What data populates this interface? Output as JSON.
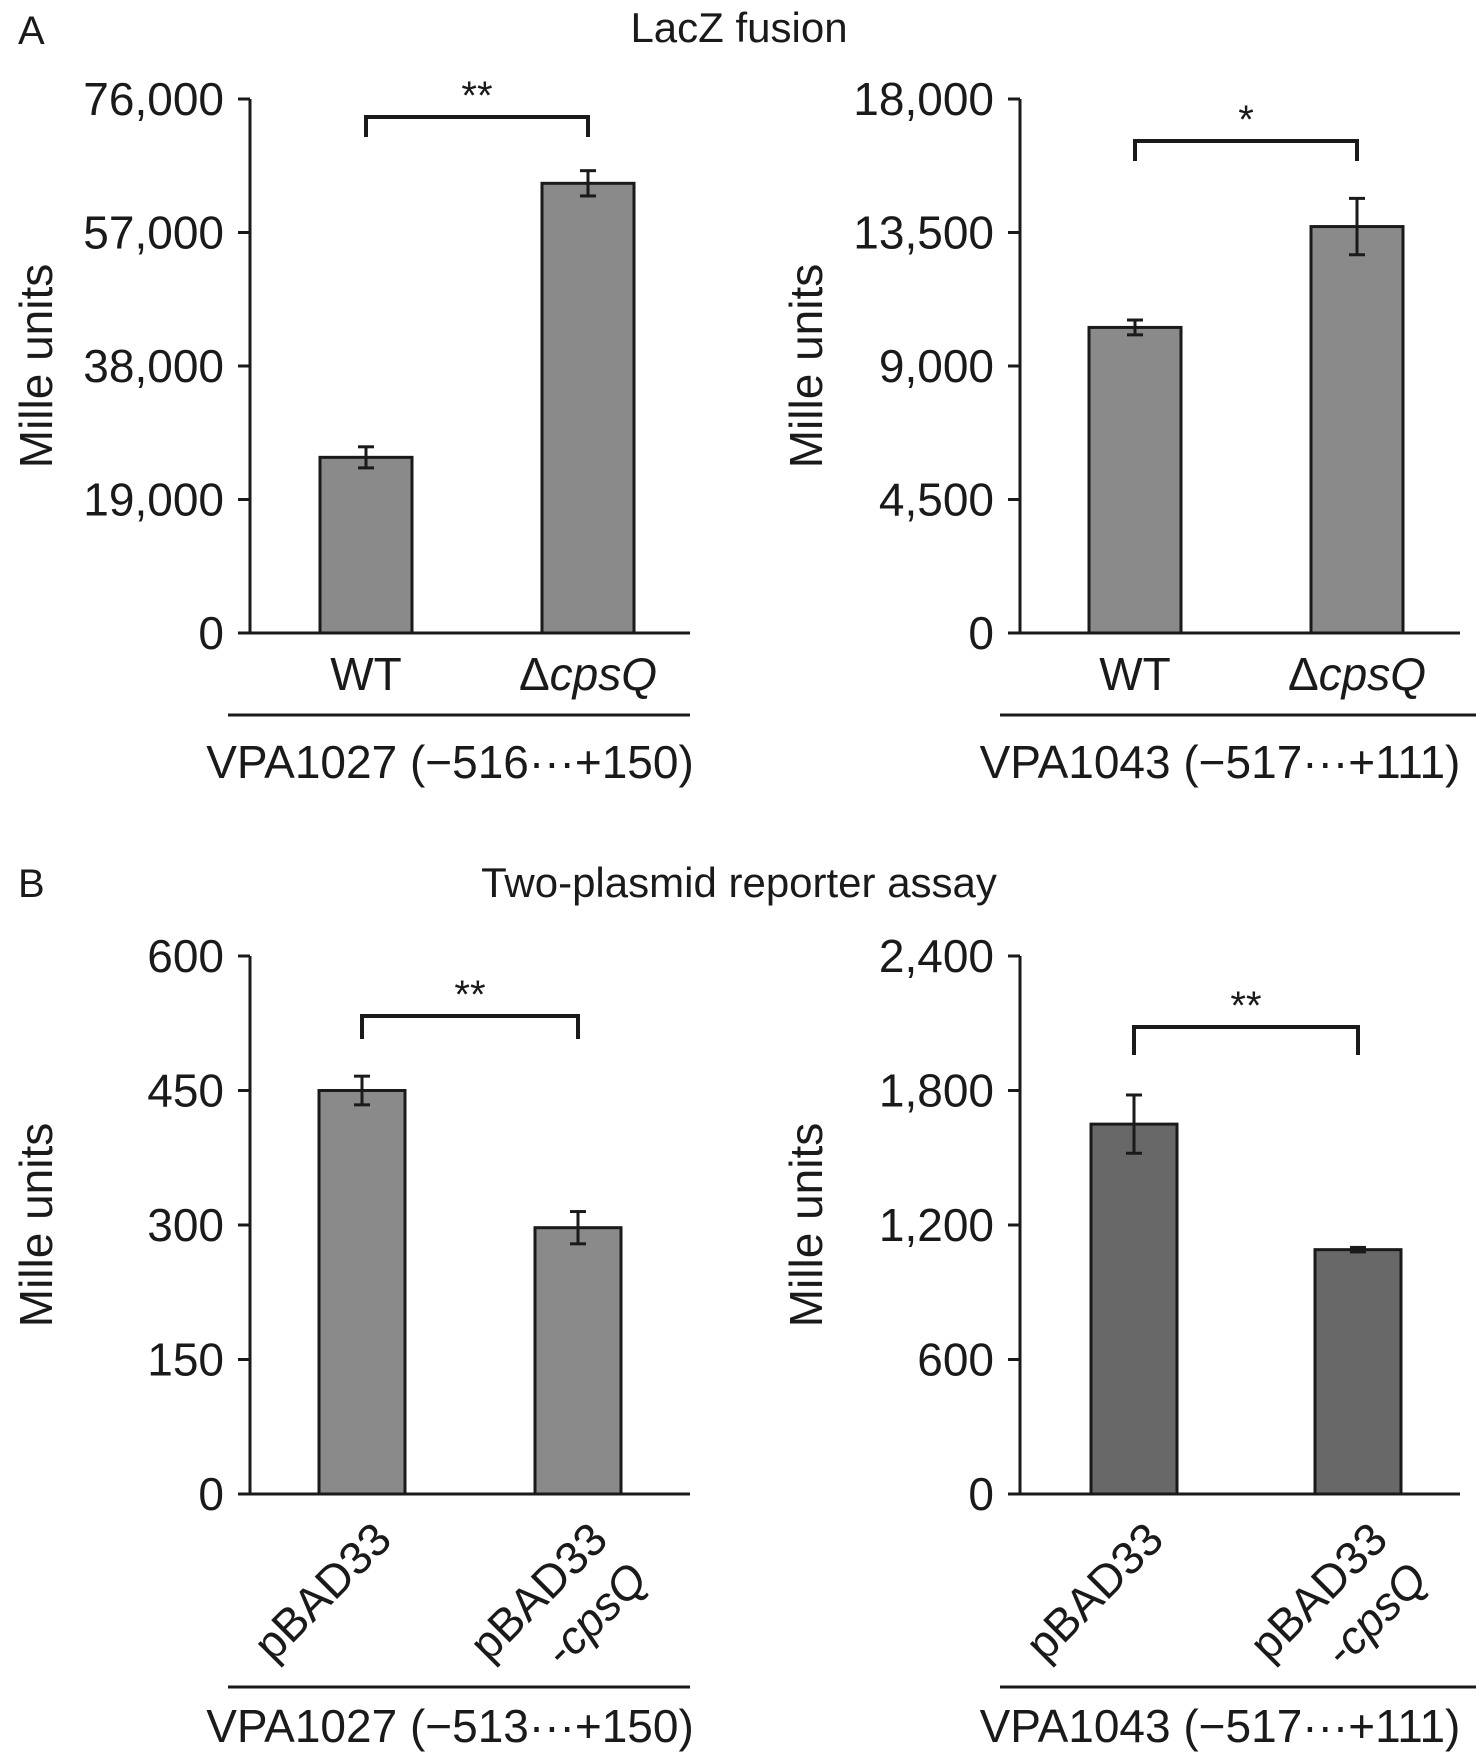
{
  "panels": {
    "A": {
      "letter": "A",
      "title": "LacZ fusion"
    },
    "B": {
      "letter": "B",
      "title": "Two-plasmid reporter assay"
    }
  },
  "chart_data": [
    {
      "type": "bar",
      "panel": "A",
      "ylabel": "Mille units",
      "ylim": [
        0,
        76000
      ],
      "yticks": [
        0,
        19000,
        38000,
        57000,
        76000
      ],
      "ytick_labels": [
        "0",
        "19,000",
        "38,000",
        "57,000",
        "76,000"
      ],
      "categories": [
        {
          "label": "WT",
          "prefix": "",
          "italic": ""
        },
        {
          "label": "",
          "prefix": "Δ",
          "italic": "cpsQ"
        }
      ],
      "values": [
        25000,
        64000
      ],
      "errors": [
        1500,
        1800
      ],
      "bar_color": "#8a8a8a",
      "significance": "**",
      "group_label": "VPA1027 (−516···+150)",
      "rotated_labels": false
    },
    {
      "type": "bar",
      "panel": "A",
      "ylabel": "Mille units",
      "ylim": [
        0,
        18000
      ],
      "yticks": [
        0,
        4500,
        9000,
        13500,
        18000
      ],
      "ytick_labels": [
        "0",
        "4,500",
        "9,000",
        "13,500",
        "18,000"
      ],
      "categories": [
        {
          "label": "WT",
          "prefix": "",
          "italic": ""
        },
        {
          "label": "",
          "prefix": "Δ",
          "italic": "cpsQ"
        }
      ],
      "values": [
        10300,
        13700
      ],
      "errors": [
        250,
        950
      ],
      "bar_color": "#8a8a8a",
      "significance": "*",
      "group_label": "VPA1043 (−517···+111)",
      "rotated_labels": false
    },
    {
      "type": "bar",
      "panel": "B",
      "ylabel": "Mille units",
      "ylim": [
        0,
        600
      ],
      "yticks": [
        0,
        150,
        300,
        450,
        600
      ],
      "ytick_labels": [
        "0",
        "150",
        "300",
        "450",
        "600"
      ],
      "categories": [
        {
          "label": "pBAD33",
          "prefix": "",
          "italic": ""
        },
        {
          "label": "pBAD33",
          "prefix": "-",
          "italic": "cpsQ"
        }
      ],
      "values": [
        450,
        297
      ],
      "errors": [
        16,
        18
      ],
      "bar_color": "#8a8a8a",
      "significance": "**",
      "group_label": "VPA1027 (−513···+150)",
      "rotated_labels": true
    },
    {
      "type": "bar",
      "panel": "B",
      "ylabel": "Mille units",
      "ylim": [
        0,
        2400
      ],
      "yticks": [
        0,
        600,
        1200,
        1800,
        2400
      ],
      "ytick_labels": [
        "0",
        "600",
        "1,200",
        "1,800",
        "2,400"
      ],
      "categories": [
        {
          "label": "pBAD33",
          "prefix": "",
          "italic": ""
        },
        {
          "label": "pBAD33",
          "prefix": "-",
          "italic": "cpsQ"
        }
      ],
      "values": [
        1650,
        1090
      ],
      "errors": [
        130,
        10
      ],
      "bar_color": "#686868",
      "significance": "**",
      "group_label": "VPA1043 (−517···+111)",
      "rotated_labels": true
    }
  ]
}
